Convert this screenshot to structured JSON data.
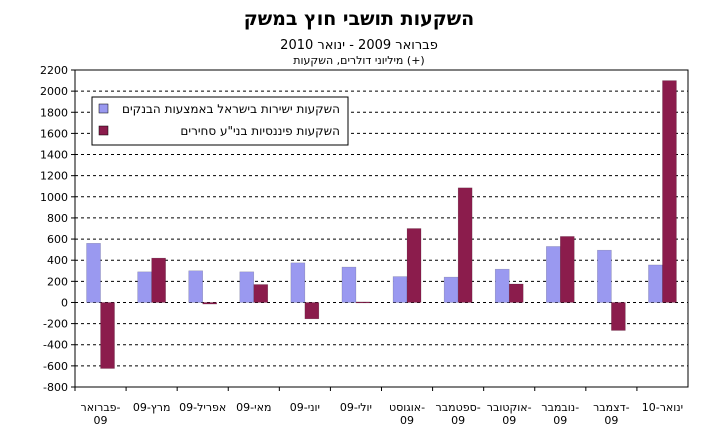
{
  "chart_data": {
    "type": "bar",
    "title": "השקעות תושבי חוץ במשק",
    "subtitle": "פברואר 2009 - ינואר 2010",
    "units_note": "מיליוני דולרים, השקעות (+)",
    "categories": [
      [
        "פברואר-",
        "09"
      ],
      [
        "מרץ-09"
      ],
      [
        "אפריל-09"
      ],
      [
        "מאי-09"
      ],
      [
        "יוני-09"
      ],
      [
        "יולי-09"
      ],
      [
        "אוגוסט-",
        "09"
      ],
      [
        "ספטמבר-",
        "09"
      ],
      [
        "אוקטובר-",
        "09"
      ],
      [
        "נובמבר-",
        "09"
      ],
      [
        "דצמבר-",
        "09"
      ],
      [
        "ינואר-10"
      ]
    ],
    "series": [
      {
        "name": "השקעות ישירות בישראל באמצעות הבנקים",
        "color": "#9a99f0",
        "values": [
          560,
          290,
          300,
          290,
          375,
          335,
          245,
          240,
          315,
          530,
          495,
          355
        ]
      },
      {
        "name": "השקעות פיננסיות בני\"ע סחירים",
        "color": "#8b1c4c",
        "values": [
          -625,
          420,
          -15,
          170,
          -155,
          5,
          700,
          1085,
          175,
          625,
          -265,
          2100
        ]
      }
    ],
    "ylim": [
      -800,
      2200
    ],
    "yticks": [
      -800,
      -600,
      -400,
      -200,
      0,
      200,
      400,
      600,
      800,
      1000,
      1200,
      1400,
      1600,
      1800,
      2000,
      2200
    ],
    "grid": true,
    "legend_position": "top-left"
  }
}
